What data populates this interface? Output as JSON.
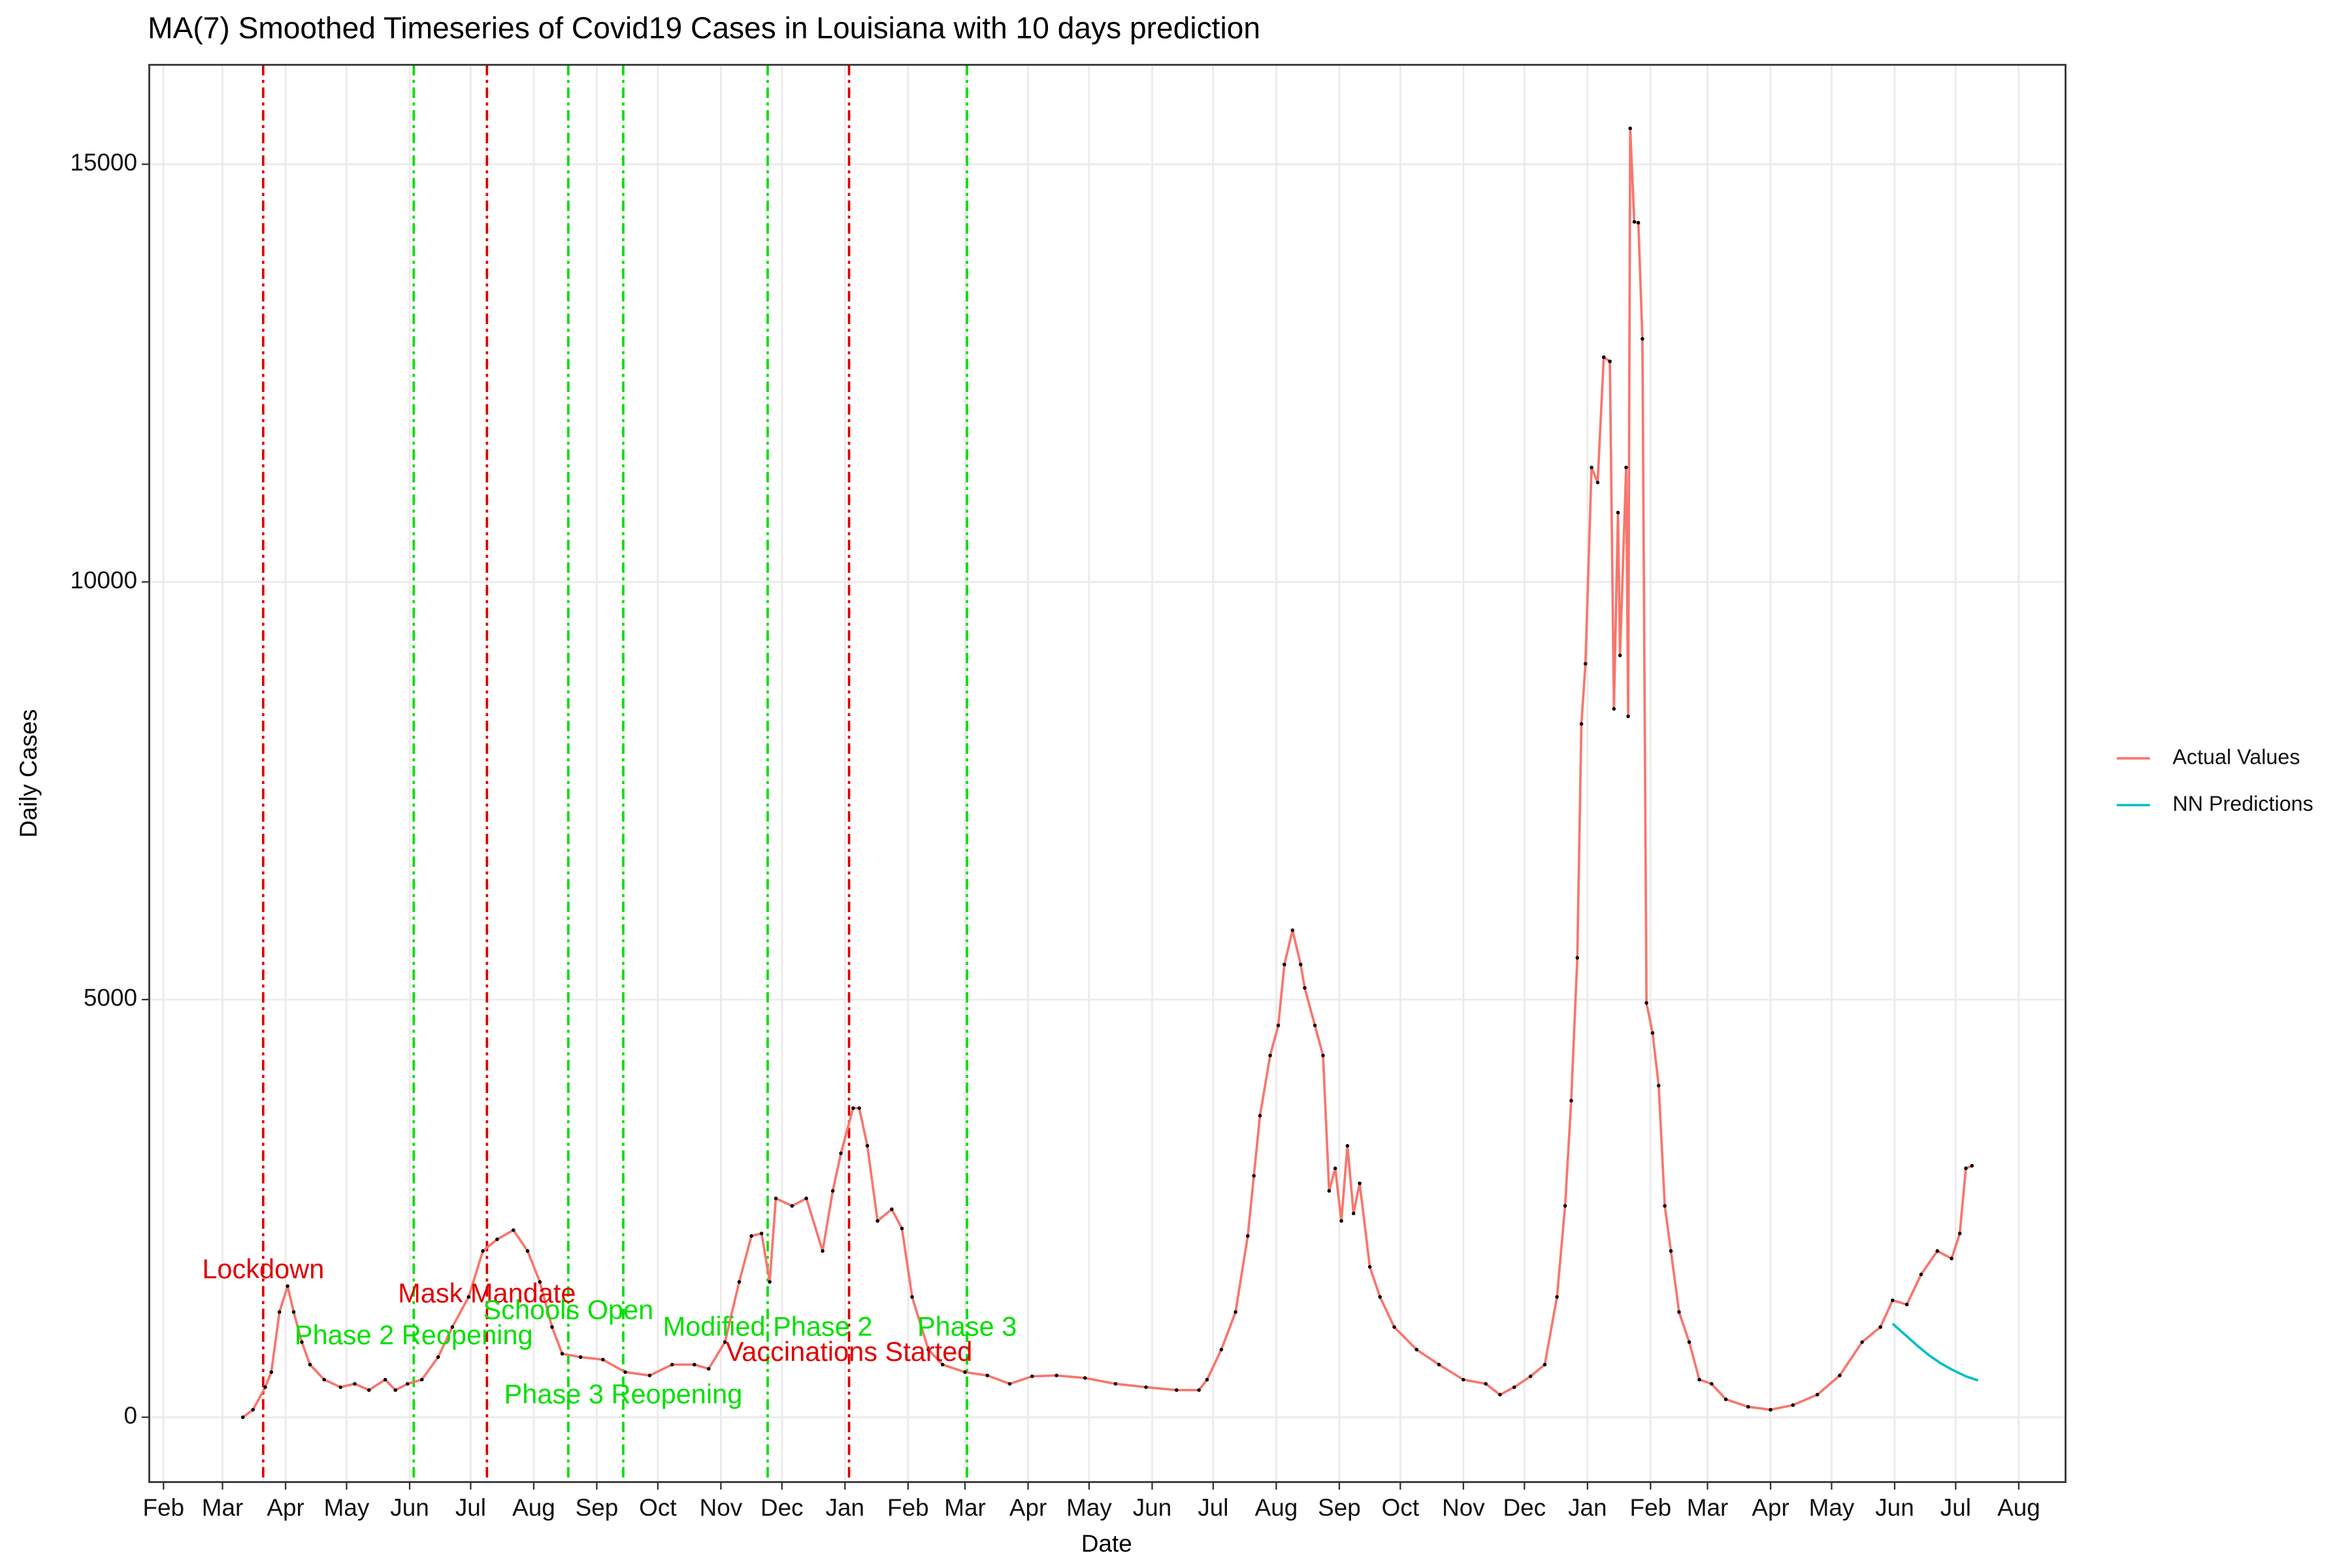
{
  "chart_data": {
    "type": "line",
    "title": "MA(7) Smoothed Timeseries of Covid19 Cases in Louisiana with 10 days prediction",
    "xlabel": "Date",
    "ylabel": "Daily Cases",
    "xlim": [
      -7,
      935
    ],
    "ylim": [
      -776,
      16190
    ],
    "yticks": [
      0,
      5000,
      10000,
      15000
    ],
    "xticks": [
      {
        "value": 0,
        "label": "Feb"
      },
      {
        "value": 29,
        "label": "Mar"
      },
      {
        "value": 60,
        "label": "Apr"
      },
      {
        "value": 90,
        "label": "May"
      },
      {
        "value": 121,
        "label": "Jun"
      },
      {
        "value": 151,
        "label": "Jul"
      },
      {
        "value": 182,
        "label": "Aug"
      },
      {
        "value": 213,
        "label": "Sep"
      },
      {
        "value": 243,
        "label": "Oct"
      },
      {
        "value": 274,
        "label": "Nov"
      },
      {
        "value": 304,
        "label": "Dec"
      },
      {
        "value": 335,
        "label": "Jan"
      },
      {
        "value": 366,
        "label": "Feb"
      },
      {
        "value": 394,
        "label": "Mar"
      },
      {
        "value": 425,
        "label": "Apr"
      },
      {
        "value": 455,
        "label": "May"
      },
      {
        "value": 486,
        "label": "Jun"
      },
      {
        "value": 516,
        "label": "Jul"
      },
      {
        "value": 547,
        "label": "Aug"
      },
      {
        "value": 578,
        "label": "Sep"
      },
      {
        "value": 608,
        "label": "Oct"
      },
      {
        "value": 639,
        "label": "Nov"
      },
      {
        "value": 669,
        "label": "Dec"
      },
      {
        "value": 700,
        "label": "Jan"
      },
      {
        "value": 731,
        "label": "Feb"
      },
      {
        "value": 759,
        "label": "Mar"
      },
      {
        "value": 790,
        "label": "Apr"
      },
      {
        "value": 820,
        "label": "May"
      },
      {
        "value": 851,
        "label": "Jun"
      },
      {
        "value": 881,
        "label": "Jul"
      },
      {
        "value": 912,
        "label": "Aug"
      }
    ],
    "grid": true,
    "legend": "right",
    "series": [
      {
        "name": "Actual Values",
        "color": "#f8766d",
        "x": [
          39,
          44,
          50,
          53,
          57,
          61,
          64,
          68,
          72,
          79,
          87,
          94,
          101,
          109,
          114,
          120,
          127,
          135,
          142,
          150,
          157,
          164,
          172,
          179,
          185,
          191,
          196,
          205,
          216,
          227,
          239,
          250,
          261,
          268,
          276,
          283,
          289,
          294,
          298,
          301,
          309,
          316,
          324,
          329,
          333,
          339,
          342,
          346,
          351,
          358,
          363,
          368,
          376,
          383,
          394,
          405,
          416,
          427,
          439,
          453,
          468,
          483,
          498,
          509,
          513,
          520,
          527,
          533,
          536,
          539,
          544,
          548,
          551,
          555,
          559,
          561,
          566,
          570,
          573,
          576,
          579,
          582,
          585,
          588,
          593,
          598,
          605,
          616,
          627,
          639,
          650,
          657,
          664,
          672,
          679,
          685,
          689,
          692,
          695,
          697,
          699,
          702,
          705,
          708,
          711,
          713,
          715,
          716,
          719,
          720,
          721,
          723,
          725,
          727,
          729,
          732,
          735,
          738,
          741,
          745,
          750,
          755,
          761,
          768,
          779,
          790,
          801,
          813,
          824,
          835,
          844,
          850,
          857,
          864,
          872,
          879,
          883,
          886,
          889
        ],
        "values": [
          0,
          90,
          360,
          540,
          1260,
          1570,
          1260,
          900,
          630,
          450,
          360,
          400,
          325,
          450,
          325,
          400,
          450,
          720,
          1080,
          1440,
          1990,
          2130,
          2240,
          1990,
          1620,
          1080,
          760,
          720,
          690,
          540,
          500,
          630,
          630,
          580,
          900,
          1620,
          2170,
          2200,
          1620,
          2620,
          2530,
          2620,
          1990,
          2710,
          3160,
          3700,
          3700,
          3250,
          2350,
          2490,
          2260,
          1440,
          810,
          630,
          540,
          500,
          400,
          490,
          500,
          470,
          400,
          360,
          325,
          325,
          450,
          810,
          1260,
          2170,
          2890,
          3610,
          4330,
          4690,
          5420,
          5830,
          5420,
          5140,
          4690,
          4330,
          2710,
          2980,
          2350,
          3250,
          2440,
          2800,
          1800,
          1440,
          1080,
          810,
          630,
          450,
          400,
          270,
          360,
          490,
          630,
          1440,
          2530,
          3790,
          5500,
          8300,
          9020,
          11370,
          11190,
          12690,
          12640,
          8480,
          10830,
          9120,
          11370,
          8390,
          15430,
          14310,
          14300,
          12910,
          4960,
          4600,
          3970,
          2530,
          1990,
          1260,
          900,
          450,
          400,
          215,
          125,
          90,
          145,
          270,
          500,
          900,
          1080,
          1400,
          1350,
          1710,
          1990,
          1900,
          2200,
          2980,
          3010
        ]
      },
      {
        "name": "NN Predictions",
        "color": "#00bfc4",
        "x": [
          850,
          856,
          862,
          868,
          874,
          880,
          886,
          892
        ],
        "values": [
          1120,
          990,
          860,
          740,
          640,
          560,
          490,
          440
        ]
      }
    ],
    "events": [
      {
        "label": "Lockdown",
        "x": 49,
        "label_y": 1750,
        "color": "#e00000"
      },
      {
        "label": "Phase 2 Reopening",
        "x": 123,
        "label_y": 960,
        "color": "#00e000"
      },
      {
        "label": "Mask Mandate",
        "x": 159,
        "label_y": 1460,
        "color": "#e00000"
      },
      {
        "label": "Schools Open",
        "x": 199,
        "label_y": 1260,
        "color": "#00e000"
      },
      {
        "label": "Phase 3 Reopening",
        "x": 226,
        "label_y": 250,
        "color": "#00e000"
      },
      {
        "label": "Modified Phase 2",
        "x": 297,
        "label_y": 1060,
        "color": "#00e000"
      },
      {
        "label": "Vaccinations Started",
        "x": 337,
        "label_y": 760,
        "color": "#e00000"
      },
      {
        "label": "Phase 3",
        "x": 395,
        "label_y": 1060,
        "color": "#00e000"
      }
    ]
  }
}
